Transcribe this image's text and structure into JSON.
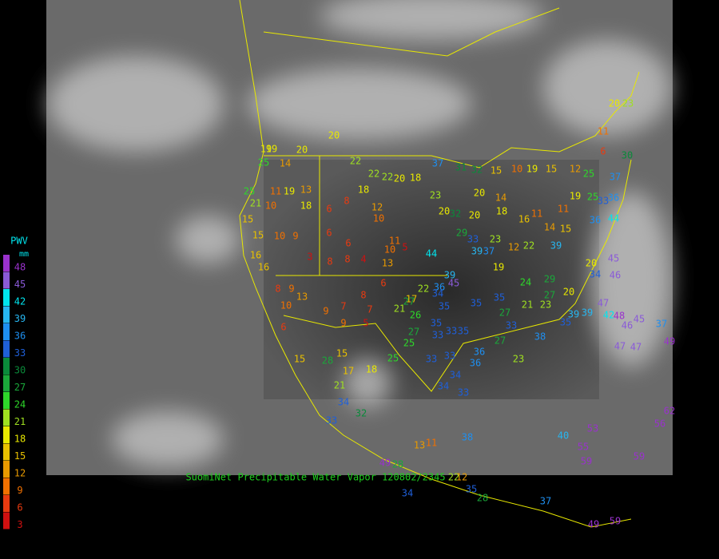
{
  "legend": {
    "title": "PWV",
    "unit": "mm",
    "items": [
      {
        "value": 48,
        "color": "#9a32cd"
      },
      {
        "value": 45,
        "color": "#8a5ad8"
      },
      {
        "value": 42,
        "color": "#00e5ee"
      },
      {
        "value": 39,
        "color": "#27b6f0"
      },
      {
        "value": 36,
        "color": "#1e8ff0"
      },
      {
        "value": 33,
        "color": "#1f5fd8"
      },
      {
        "value": 30,
        "color": "#0a8a3a"
      },
      {
        "value": 27,
        "color": "#1aa83a"
      },
      {
        "value": 24,
        "color": "#2ed82a"
      },
      {
        "value": 21,
        "color": "#9fe020"
      },
      {
        "value": 18,
        "color": "#e8e800"
      },
      {
        "value": 15,
        "color": "#e8c000"
      },
      {
        "value": 12,
        "color": "#e89a00"
      },
      {
        "value": 9,
        "color": "#f07000"
      },
      {
        "value": 6,
        "color": "#e83a10"
      },
      {
        "value": 3,
        "color": "#d01010"
      }
    ]
  },
  "caption": "SuomiNet Precipitable Water Vapor 120802/2345",
  "stations": [
    19,
    19,
    20,
    20,
    25,
    14,
    25,
    11,
    19,
    13,
    21,
    10,
    18,
    6,
    8,
    18,
    12,
    10,
    15,
    15,
    10,
    9,
    6,
    6,
    11,
    5,
    10,
    13,
    16,
    16,
    3,
    8,
    8,
    4,
    8,
    9,
    13,
    10,
    9,
    7,
    7,
    8,
    6,
    21,
    17,
    9,
    5,
    6,
    15,
    28,
    15,
    17,
    18,
    25,
    21,
    34,
    33,
    32,
    22,
    22,
    22,
    20,
    18,
    37,
    31,
    32,
    15,
    10,
    19,
    15,
    12,
    20,
    20,
    14,
    18,
    16,
    11,
    11,
    15,
    19,
    25,
    33,
    36,
    37,
    25,
    30,
    11,
    6,
    20,
    23,
    23,
    20,
    32,
    29,
    33,
    39,
    23,
    37,
    19,
    12,
    22,
    14,
    39,
    20,
    39,
    45,
    44,
    36,
    34,
    22,
    27,
    26,
    27,
    25,
    33,
    33,
    35,
    33,
    33,
    34,
    34,
    33,
    36,
    36,
    27,
    33,
    27,
    21,
    23,
    27,
    20,
    29,
    24,
    35,
    39,
    39,
    47,
    42,
    48,
    46,
    45,
    47,
    47,
    37,
    49,
    45,
    46,
    34,
    36,
    44,
    23,
    38,
    35,
    35,
    35,
    35,
    13,
    11,
    38,
    40,
    53,
    55,
    59,
    59,
    56,
    62,
    49,
    28,
    22,
    12,
    35,
    28,
    37,
    34,
    49,
    59
  ]
}
